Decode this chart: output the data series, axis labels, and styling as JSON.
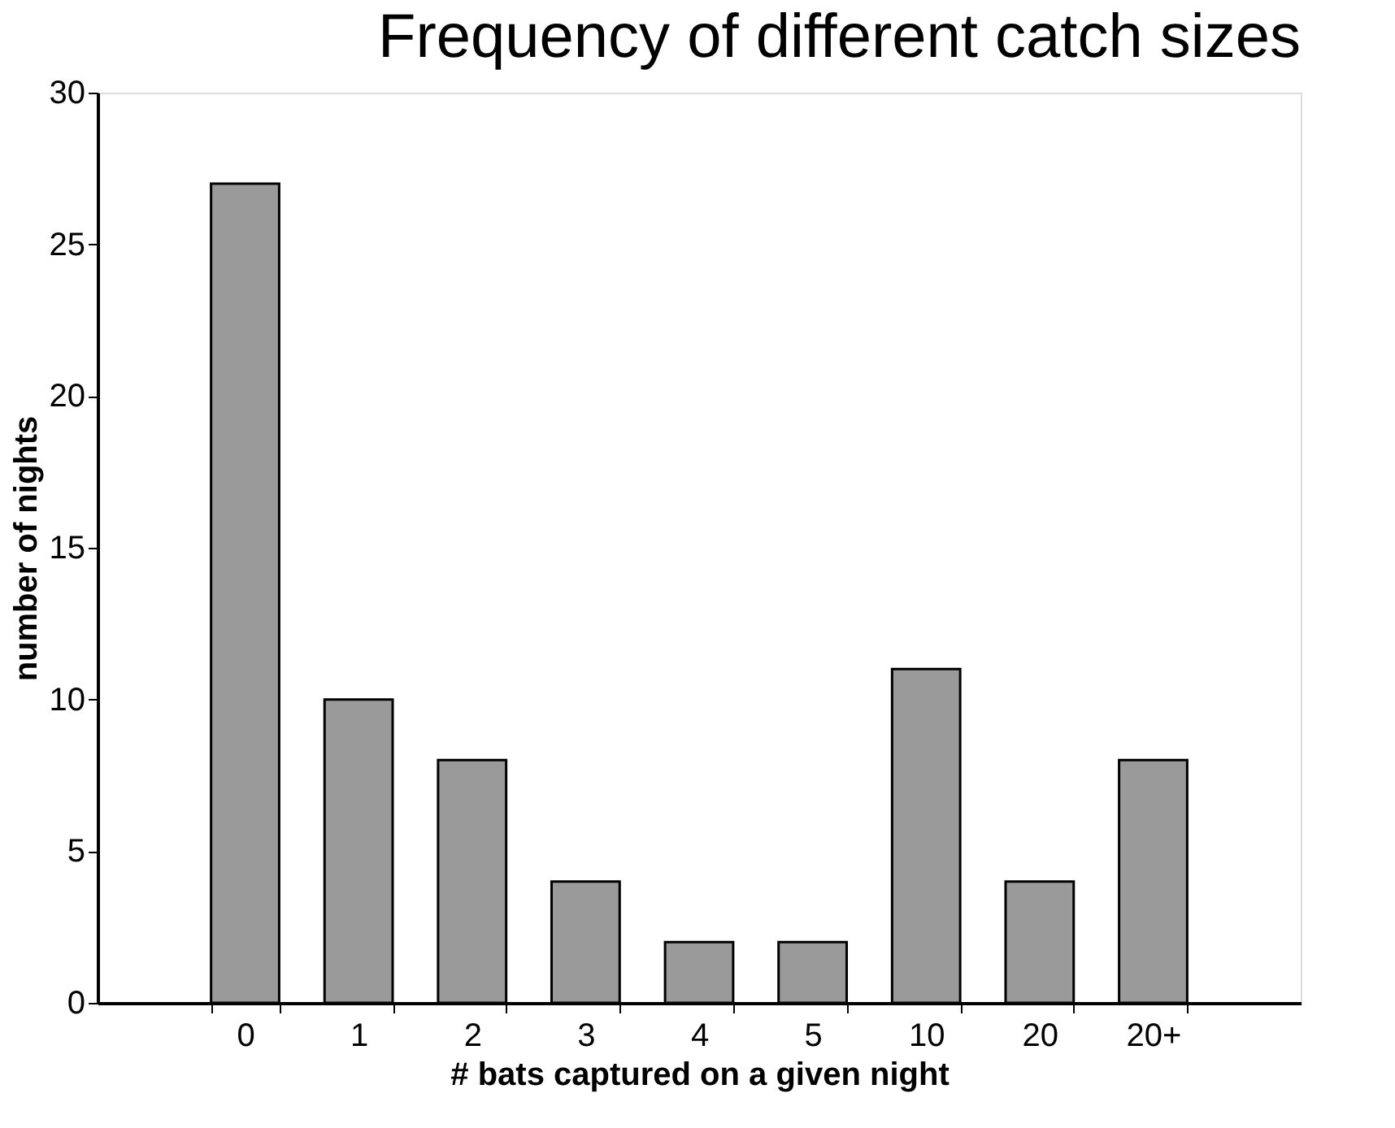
{
  "chart_data": {
    "type": "bar",
    "title": "Frequency of different catch sizes",
    "xlabel": "# bats captured on a given night",
    "ylabel": "number of nights",
    "categories": [
      "0",
      "1",
      "2",
      "3",
      "4",
      "5",
      "10",
      "20",
      "20+"
    ],
    "values": [
      27,
      10,
      8,
      4,
      2,
      2,
      11,
      4,
      8
    ],
    "color": "#9a9a9a",
    "ylim": [
      0,
      30
    ],
    "yticks": [
      0,
      5,
      10,
      15,
      20,
      25,
      30
    ],
    "grid": false
  }
}
